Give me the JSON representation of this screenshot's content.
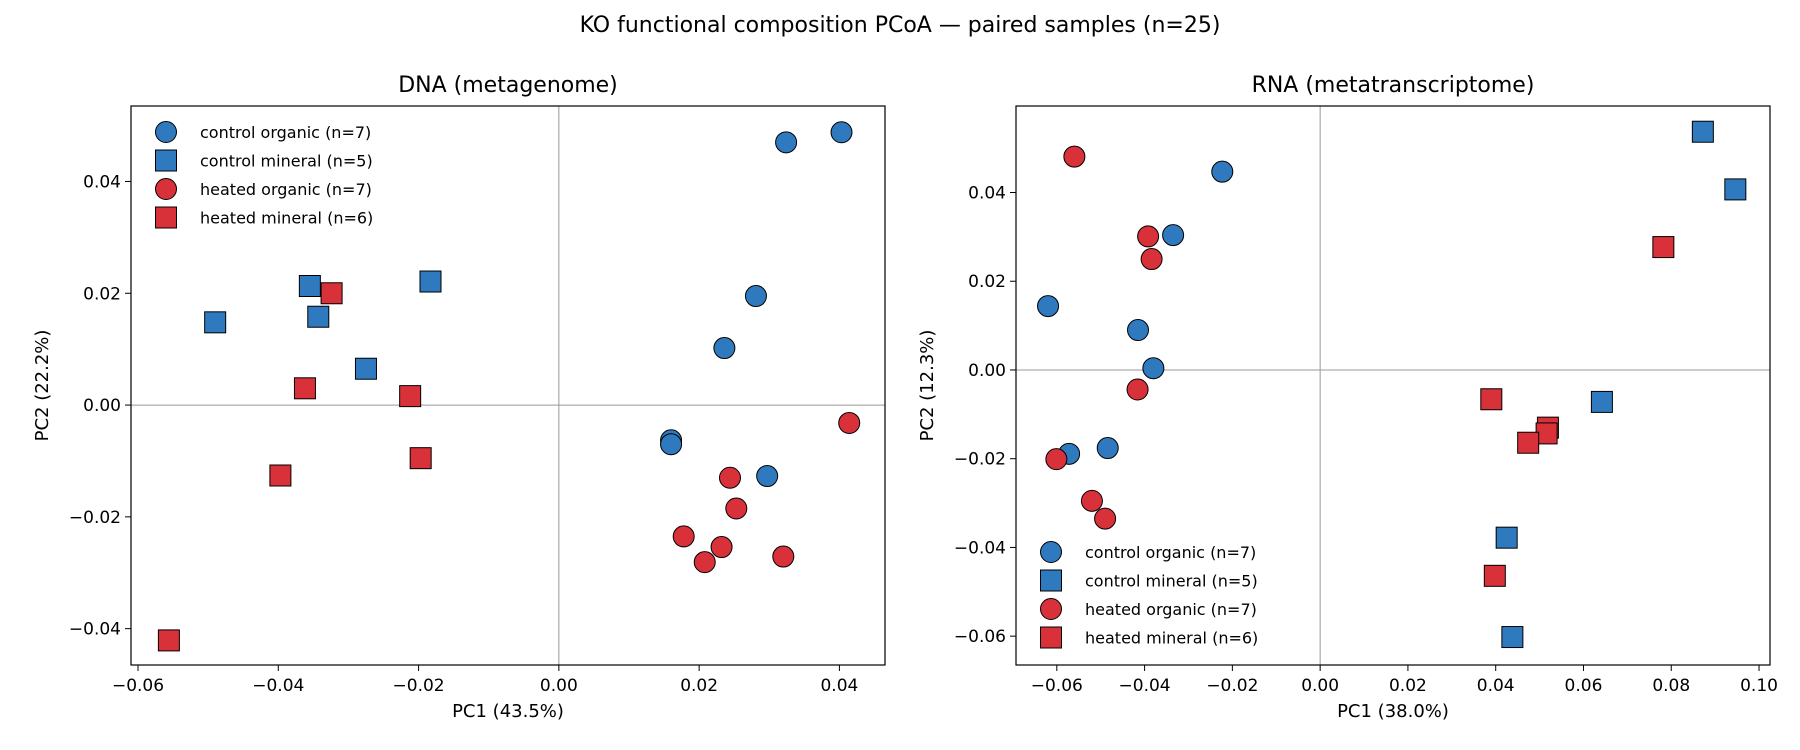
{
  "suptitle": "KO functional composition PCoA — paired samples (n=25)",
  "colors": {
    "control": "#2f7abf",
    "heated": "#d8313a",
    "edge": "#000000",
    "zero_line": "#999999"
  },
  "chart_data": [
    {
      "type": "scatter",
      "title": "DNA (metagenome)",
      "xlabel": "PC1 (43.5%)",
      "ylabel": "PC2 (22.2%)",
      "xlim": [
        -0.061,
        0.0465
      ],
      "ylim": [
        -0.0465,
        0.0535
      ],
      "xticks": [
        -0.06,
        -0.04,
        -0.02,
        0.0,
        0.02,
        0.04
      ],
      "xtick_labels": [
        "−0.06",
        "−0.04",
        "−0.02",
        "0.00",
        "0.02",
        "0.04"
      ],
      "yticks": [
        -0.04,
        -0.02,
        0.0,
        0.02,
        0.04
      ],
      "ytick_labels": [
        "−0.04",
        "−0.02",
        "0.00",
        "0.02",
        "0.04"
      ],
      "legend_position": "upper-left",
      "series": [
        {
          "name": "control organic (n=7)",
          "marker": "circle",
          "color": "control",
          "points": [
            [
              0.0403,
              0.0488
            ],
            [
              0.0324,
              0.047
            ],
            [
              0.0281,
              0.0195
            ],
            [
              0.0236,
              0.0102
            ],
            [
              0.016,
              -0.0063
            ],
            [
              0.016,
              -0.007
            ],
            [
              0.0297,
              -0.0127
            ]
          ]
        },
        {
          "name": "control mineral (n=5)",
          "marker": "square",
          "color": "control",
          "points": [
            [
              -0.0183,
              0.0221
            ],
            [
              -0.0355,
              0.0213
            ],
            [
              -0.0343,
              0.0158
            ],
            [
              -0.049,
              0.0148
            ],
            [
              -0.0275,
              0.0065
            ]
          ]
        },
        {
          "name": "heated organic (n=7)",
          "marker": "circle",
          "color": "heated",
          "points": [
            [
              0.0414,
              -0.0032
            ],
            [
              0.0244,
              -0.013
            ],
            [
              0.0253,
              -0.0185
            ],
            [
              0.0178,
              -0.0235
            ],
            [
              0.0232,
              -0.0254
            ],
            [
              0.0208,
              -0.0281
            ],
            [
              0.032,
              -0.0271
            ]
          ]
        },
        {
          "name": "heated mineral (n=6)",
          "marker": "square",
          "color": "heated",
          "points": [
            [
              -0.0324,
              0.02
            ],
            [
              -0.0362,
              0.003
            ],
            [
              -0.0212,
              0.0016
            ],
            [
              -0.0197,
              -0.0095
            ],
            [
              -0.0397,
              -0.0126
            ],
            [
              -0.0556,
              -0.0421
            ]
          ]
        }
      ]
    },
    {
      "type": "scatter",
      "title": "RNA (metatranscriptome)",
      "xlabel": "PC1 (38.0%)",
      "ylabel": "PC2 (12.3%)",
      "xlim": [
        -0.0693,
        0.1025
      ],
      "ylim": [
        -0.0665,
        0.0595
      ],
      "xticks": [
        -0.06,
        -0.04,
        -0.02,
        0.0,
        0.02,
        0.04,
        0.06,
        0.08,
        0.1
      ],
      "xtick_labels": [
        "−0.06",
        "−0.04",
        "−0.02",
        "0.00",
        "0.02",
        "0.04",
        "0.06",
        "0.08",
        "0.10"
      ],
      "yticks": [
        -0.06,
        -0.04,
        -0.02,
        0.0,
        0.02,
        0.04
      ],
      "ytick_labels": [
        "−0.06",
        "−0.04",
        "−0.02",
        "0.00",
        "0.02",
        "0.04"
      ],
      "legend_position": "lower-left",
      "series": [
        {
          "name": "control organic (n=7)",
          "marker": "circle",
          "color": "control",
          "points": [
            [
              -0.0223,
              0.0447
            ],
            [
              -0.0335,
              0.0304
            ],
            [
              -0.062,
              0.0144
            ],
            [
              -0.0415,
              0.009
            ],
            [
              -0.038,
              0.0004
            ],
            [
              -0.0572,
              -0.0189
            ],
            [
              -0.0484,
              -0.0176
            ]
          ]
        },
        {
          "name": "control mineral (n=5)",
          "marker": "square",
          "color": "control",
          "points": [
            [
              0.0872,
              0.0537
            ],
            [
              0.0946,
              0.0407
            ],
            [
              0.0642,
              -0.0072
            ],
            [
              0.0425,
              -0.0378
            ],
            [
              0.0438,
              -0.0602
            ]
          ]
        },
        {
          "name": "heated organic (n=7)",
          "marker": "circle",
          "color": "heated",
          "points": [
            [
              -0.056,
              0.0481
            ],
            [
              -0.0392,
              0.0301
            ],
            [
              -0.0384,
              0.025
            ],
            [
              -0.0416,
              -0.0044
            ],
            [
              -0.0601,
              -0.0201
            ],
            [
              -0.052,
              -0.0295
            ],
            [
              -0.049,
              -0.0335
            ]
          ]
        },
        {
          "name": "heated mineral (n=6)",
          "marker": "square",
          "color": "heated",
          "points": [
            [
              0.0782,
              0.0277
            ],
            [
              0.039,
              -0.0066
            ],
            [
              0.0519,
              -0.013
            ],
            [
              0.0516,
              -0.0143
            ],
            [
              0.0474,
              -0.0164
            ],
            [
              0.0398,
              -0.0464
            ]
          ]
        }
      ]
    }
  ]
}
